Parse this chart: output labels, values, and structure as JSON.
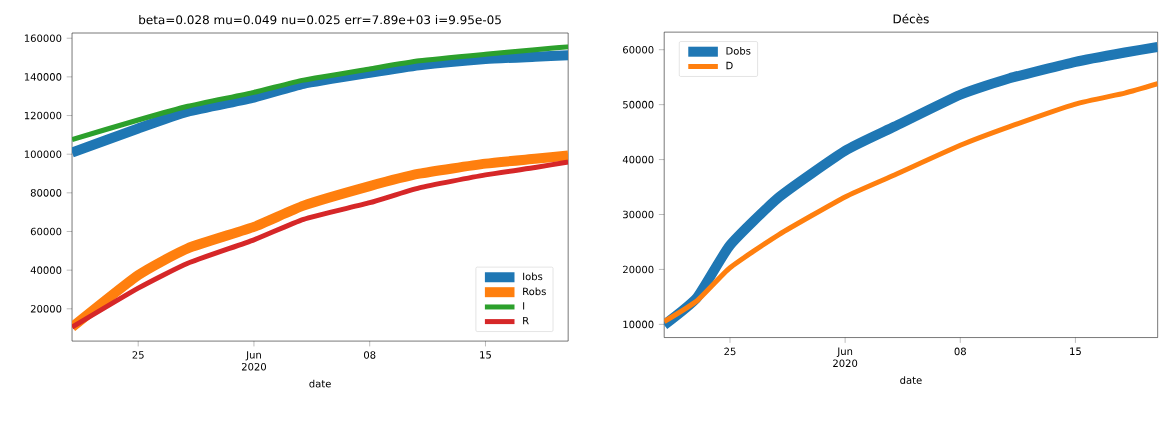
{
  "chart_data": [
    {
      "type": "line",
      "title": "beta=0.028 mu=0.049 nu=0.025 err=7.89e+03 i=9.95e-05",
      "xlabel": "date",
      "x": [
        "2020-05-21",
        "2020-05-25",
        "2020-05-28",
        "2020-06-01",
        "2020-06-04",
        "2020-06-08",
        "2020-06-11",
        "2020-06-15",
        "2020-06-18",
        "2020-06-20"
      ],
      "series": [
        {
          "name": "Iobs",
          "color": "#1f77b4",
          "values": [
            100800,
            113300,
            122000,
            129300,
            136400,
            142100,
            146000,
            149200,
            150400,
            151200
          ]
        },
        {
          "name": "Robs",
          "color": "#ff7f0e",
          "values": [
            10500,
            37400,
            51300,
            62400,
            73400,
            83500,
            89900,
            95100,
            97600,
            99300
          ]
        },
        {
          "name": "I",
          "color": "#2ca02c",
          "values": [
            107600,
            117700,
            124800,
            132000,
            138300,
            144100,
            148300,
            151700,
            154000,
            155600
          ]
        },
        {
          "name": "R",
          "color": "#d62728",
          "values": [
            10500,
            30700,
            43600,
            55700,
            66300,
            74900,
            82600,
            89300,
            93100,
            96000
          ]
        }
      ],
      "xlim": [
        "2020-05-21",
        "2020-06-20"
      ],
      "xticks": [
        {
          "value": "2020-05-25",
          "label": "25"
        },
        {
          "value": "2020-06-01",
          "label": "Jun 2020"
        },
        {
          "value": "2020-06-08",
          "label": "08"
        },
        {
          "value": "2020-06-15",
          "label": "15"
        }
      ],
      "ylim": [
        3300,
        162700
      ],
      "yticks": [
        20000,
        40000,
        60000,
        80000,
        100000,
        120000,
        140000,
        160000
      ],
      "legend": "bottom right"
    },
    {
      "type": "line",
      "title": "Décès",
      "xlabel": "date",
      "x": [
        "2020-05-21",
        "2020-05-23",
        "2020-05-25",
        "2020-05-28",
        "2020-06-01",
        "2020-06-04",
        "2020-06-08",
        "2020-06-11",
        "2020-06-15",
        "2020-06-18",
        "2020-06-20"
      ],
      "series": [
        {
          "name": "Dobs",
          "color": "#1f77b4",
          "values": [
            9900,
            14900,
            24400,
            33200,
            41600,
            46000,
            51800,
            54800,
            57800,
            59500,
            60500
          ]
        },
        {
          "name": "D",
          "color": "#ff7f0e",
          "values": [
            10500,
            14300,
            20300,
            26400,
            33200,
            37200,
            42600,
            46000,
            50100,
            52100,
            53800
          ]
        }
      ],
      "xlim": [
        "2020-05-21",
        "2020-06-20"
      ],
      "xticks": [
        {
          "value": "2020-05-25",
          "label": "25"
        },
        {
          "value": "2020-06-01",
          "label": "Jun 2020"
        },
        {
          "value": "2020-06-08",
          "label": "08"
        },
        {
          "value": "2020-06-15",
          "label": "15"
        }
      ],
      "ylim": [
        7600,
        63200
      ],
      "yticks": [
        10000,
        20000,
        30000,
        40000,
        50000,
        60000
      ],
      "legend": "top left"
    }
  ]
}
